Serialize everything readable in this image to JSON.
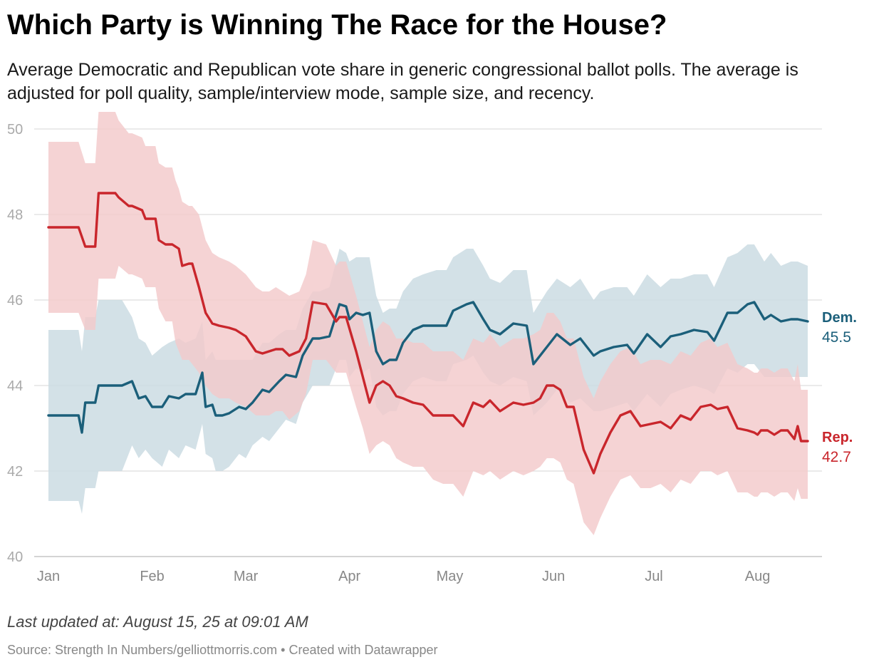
{
  "header": {
    "title": "Which Party is Winning The Race for the House?",
    "subtitle": "Average Democratic and Republican vote share in generic congressional ballot polls. The average is adjusted for poll quality, sample/interview mode, sample size, and recency."
  },
  "footer": {
    "updated": "Last updated at: August 15, 25 at 09:01 AM",
    "source": "Source: Strength In Numbers/gelliottmorris.com • Created with Datawrapper"
  },
  "chart_data": {
    "type": "line",
    "title": "Which Party is Winning The Race for the House?",
    "xlabel": "",
    "ylabel": "",
    "ylim": [
      40,
      50
    ],
    "yticks": [
      "40",
      "42",
      "44",
      "46",
      "48",
      "50"
    ],
    "xlim": [
      1,
      228
    ],
    "xticks": [
      {
        "label": "Jan",
        "day": 1
      },
      {
        "label": "Feb",
        "day": 32
      },
      {
        "label": "Mar",
        "day": 60
      },
      {
        "label": "Apr",
        "day": 91
      },
      {
        "label": "May",
        "day": 121
      },
      {
        "label": "Jun",
        "day": 152
      },
      {
        "label": "Jul",
        "day": 182
      },
      {
        "label": "Aug",
        "day": 213
      }
    ],
    "grid": true,
    "colors": {
      "dem": "#1b5f7a",
      "dem_band": "#c9dbe2",
      "rep": "#c9262c",
      "rep_band": "#f3c9ca",
      "grid": "#dddddd"
    },
    "end_labels": [
      {
        "name": "Dem.",
        "value": "45.5"
      },
      {
        "name": "Rep.",
        "value": "42.7"
      }
    ],
    "series": [
      {
        "name": "Dem.",
        "x": [
          1,
          10,
          11,
          12,
          15,
          16,
          23,
          26,
          28,
          30,
          32,
          35,
          37,
          40,
          42,
          45,
          47,
          48,
          50,
          51,
          53,
          55,
          58,
          60,
          62,
          65,
          67,
          70,
          72,
          75,
          77,
          80,
          82,
          85,
          88,
          90,
          91,
          93,
          95,
          97,
          99,
          101,
          103,
          105,
          107,
          110,
          113,
          117,
          120,
          122,
          126,
          128,
          131,
          133,
          136,
          140,
          144,
          146,
          150,
          153,
          157,
          160,
          164,
          166,
          170,
          174,
          176,
          180,
          184,
          187,
          190,
          194,
          198,
          200,
          204,
          207,
          210,
          212,
          215,
          217,
          220,
          223,
          225,
          228
        ],
        "y": [
          43.3,
          43.3,
          42.9,
          43.6,
          43.6,
          44.0,
          44.0,
          44.1,
          43.7,
          43.75,
          43.5,
          43.5,
          43.75,
          43.7,
          43.8,
          43.8,
          44.3,
          43.5,
          43.55,
          43.3,
          43.3,
          43.35,
          43.5,
          43.45,
          43.6,
          43.9,
          43.85,
          44.1,
          44.25,
          44.2,
          44.7,
          45.1,
          45.1,
          45.15,
          45.9,
          45.85,
          45.55,
          45.7,
          45.65,
          45.7,
          44.8,
          44.5,
          44.6,
          44.6,
          45.0,
          45.3,
          45.4,
          45.4,
          45.4,
          45.75,
          45.9,
          45.95,
          45.55,
          45.3,
          45.2,
          45.45,
          45.4,
          44.5,
          44.9,
          45.2,
          44.95,
          45.1,
          44.7,
          44.8,
          44.9,
          44.95,
          44.75,
          45.2,
          44.9,
          45.15,
          45.2,
          45.3,
          45.25,
          45.05,
          45.7,
          45.7,
          45.9,
          45.95,
          45.55,
          45.65,
          45.5,
          45.55,
          45.55,
          45.5
        ],
        "lo": [
          41.3,
          41.3,
          41.0,
          41.6,
          41.6,
          42.0,
          42.0,
          42.6,
          42.3,
          42.5,
          42.3,
          42.1,
          42.5,
          42.3,
          42.6,
          42.5,
          43.1,
          42.4,
          42.3,
          42.0,
          42.0,
          42.1,
          42.4,
          42.3,
          42.6,
          42.8,
          42.7,
          43.0,
          43.2,
          43.1,
          43.6,
          44.0,
          44.0,
          44.0,
          44.6,
          44.6,
          44.2,
          44.4,
          44.3,
          44.4,
          43.5,
          43.3,
          43.4,
          43.4,
          43.8,
          44.1,
          44.2,
          44.1,
          44.1,
          44.5,
          44.6,
          44.7,
          44.3,
          44.1,
          44.0,
          44.2,
          44.1,
          43.3,
          43.6,
          43.9,
          43.6,
          43.7,
          43.4,
          43.4,
          43.5,
          43.6,
          43.4,
          43.8,
          43.5,
          43.8,
          43.9,
          44.0,
          43.9,
          43.8,
          44.4,
          44.3,
          44.5,
          44.5,
          44.2,
          44.2,
          44.2,
          44.2,
          44.2,
          44.2
        ],
        "hi": [
          45.3,
          45.3,
          44.8,
          45.6,
          45.6,
          46.0,
          46.0,
          45.6,
          45.1,
          45.0,
          44.7,
          44.9,
          45.0,
          45.1,
          45.0,
          45.1,
          45.5,
          44.6,
          44.8,
          44.6,
          44.6,
          44.6,
          44.6,
          44.6,
          44.6,
          45.0,
          45.0,
          45.2,
          45.3,
          45.3,
          45.8,
          46.2,
          46.2,
          46.3,
          47.2,
          47.1,
          46.9,
          47.0,
          47.0,
          47.0,
          46.1,
          45.7,
          45.8,
          45.8,
          46.2,
          46.5,
          46.6,
          46.7,
          46.7,
          47.0,
          47.2,
          47.2,
          46.8,
          46.5,
          46.4,
          46.7,
          46.7,
          45.7,
          46.2,
          46.5,
          46.3,
          46.5,
          46.0,
          46.2,
          46.3,
          46.3,
          46.1,
          46.6,
          46.3,
          46.5,
          46.5,
          46.6,
          46.6,
          46.3,
          47.0,
          47.1,
          47.3,
          47.3,
          46.9,
          47.1,
          46.8,
          46.9,
          46.9,
          46.8
        ]
      },
      {
        "name": "Rep.",
        "x": [
          1,
          10,
          12,
          15,
          16,
          21,
          22,
          25,
          26,
          29,
          30,
          33,
          34,
          36,
          37,
          38,
          39,
          40,
          41,
          43,
          44,
          46,
          48,
          50,
          52,
          55,
          57,
          60,
          63,
          65,
          67,
          69,
          71,
          73,
          76,
          78,
          80,
          84,
          87,
          88,
          90,
          93,
          95,
          97,
          99,
          101,
          103,
          105,
          107,
          110,
          113,
          116,
          119,
          122,
          125,
          128,
          131,
          133,
          136,
          140,
          143,
          146,
          148,
          150,
          152,
          154,
          156,
          158,
          161,
          164,
          166,
          169,
          172,
          175,
          178,
          181,
          184,
          187,
          190,
          193,
          196,
          199,
          201,
          204,
          207,
          210,
          212,
          213,
          214,
          216,
          218,
          220,
          222,
          224,
          225,
          226,
          228
        ],
        "y": [
          47.7,
          47.7,
          47.25,
          47.25,
          48.5,
          48.5,
          48.4,
          48.2,
          48.2,
          48.1,
          47.9,
          47.9,
          47.4,
          47.3,
          47.3,
          47.3,
          47.25,
          47.2,
          46.8,
          46.85,
          46.85,
          46.3,
          45.7,
          45.45,
          45.4,
          45.35,
          45.3,
          45.15,
          44.8,
          44.75,
          44.8,
          44.85,
          44.85,
          44.7,
          44.8,
          45.1,
          45.95,
          45.9,
          45.5,
          45.6,
          45.6,
          44.8,
          44.2,
          43.6,
          44.0,
          44.1,
          44.0,
          43.75,
          43.7,
          43.6,
          43.55,
          43.3,
          43.3,
          43.3,
          43.05,
          43.6,
          43.5,
          43.65,
          43.4,
          43.6,
          43.55,
          43.6,
          43.7,
          44.0,
          44.0,
          43.9,
          43.5,
          43.5,
          42.5,
          41.95,
          42.4,
          42.9,
          43.3,
          43.4,
          43.05,
          43.1,
          43.15,
          43.0,
          43.3,
          43.2,
          43.5,
          43.55,
          43.45,
          43.5,
          43.0,
          42.95,
          42.9,
          42.85,
          42.95,
          42.95,
          42.85,
          42.95,
          42.95,
          42.75,
          43.05,
          42.7,
          42.7
        ],
        "lo": [
          45.7,
          45.7,
          45.3,
          45.3,
          46.5,
          46.5,
          46.8,
          46.6,
          46.6,
          46.5,
          46.3,
          46.3,
          45.8,
          45.5,
          45.5,
          45.5,
          45.0,
          44.8,
          44.6,
          44.6,
          44.5,
          44.3,
          44.0,
          43.8,
          43.7,
          43.7,
          43.6,
          43.5,
          43.3,
          43.3,
          43.3,
          43.4,
          43.4,
          43.2,
          43.4,
          43.8,
          44.6,
          44.6,
          44.3,
          44.3,
          44.3,
          43.5,
          43.0,
          42.4,
          42.6,
          42.7,
          42.6,
          42.3,
          42.2,
          42.1,
          42.1,
          41.8,
          41.7,
          41.7,
          41.4,
          42.0,
          41.9,
          42.0,
          41.8,
          42.0,
          41.9,
          42.0,
          42.1,
          42.3,
          42.3,
          42.2,
          41.8,
          41.7,
          40.8,
          40.5,
          40.9,
          41.4,
          41.8,
          41.9,
          41.6,
          41.6,
          41.7,
          41.5,
          41.8,
          41.7,
          42.0,
          42.0,
          41.9,
          42.0,
          41.5,
          41.5,
          41.4,
          41.4,
          41.5,
          41.5,
          41.4,
          41.5,
          41.5,
          41.3,
          41.6,
          41.35,
          41.35
        ],
        "hi": [
          49.7,
          49.7,
          49.2,
          49.2,
          50.4,
          50.4,
          50.2,
          49.9,
          49.9,
          49.8,
          49.6,
          49.6,
          49.2,
          49.1,
          49.1,
          49.1,
          48.8,
          48.6,
          48.3,
          48.2,
          48.2,
          48.0,
          47.4,
          47.1,
          47.0,
          46.9,
          46.8,
          46.6,
          46.3,
          46.2,
          46.2,
          46.3,
          46.2,
          46.1,
          46.2,
          46.6,
          47.4,
          47.3,
          46.8,
          46.9,
          46.9,
          46.1,
          45.5,
          44.9,
          45.3,
          45.5,
          45.4,
          45.1,
          45.1,
          45.0,
          45.0,
          44.8,
          44.8,
          44.8,
          44.6,
          45.1,
          45.0,
          45.2,
          44.9,
          45.1,
          45.1,
          45.2,
          45.3,
          45.7,
          45.7,
          45.5,
          45.1,
          45.1,
          44.2,
          43.7,
          44.1,
          44.5,
          44.8,
          44.9,
          44.5,
          44.6,
          44.6,
          44.5,
          44.8,
          44.7,
          45.0,
          45.1,
          44.9,
          45.0,
          44.5,
          44.4,
          44.3,
          44.3,
          44.4,
          44.4,
          44.3,
          44.4,
          44.4,
          44.1,
          44.5,
          43.9,
          43.9
        ]
      }
    ]
  }
}
